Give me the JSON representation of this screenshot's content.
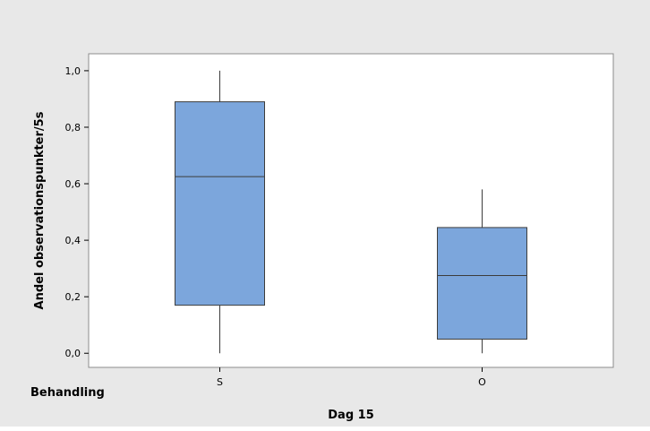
{
  "chart_data": {
    "type": "boxplot",
    "title": "",
    "xlabel": "Dag 15",
    "ylabel": "Andel observationspunkter/5s",
    "group_label": "Behandling",
    "ylim": [
      -0.05,
      1.06
    ],
    "yticks": [
      0.0,
      0.2,
      0.4,
      0.6,
      0.8,
      1.0
    ],
    "ytick_labels": [
      "0,0",
      "0,2",
      "0,4",
      "0,6",
      "0,8",
      "1,0"
    ],
    "categories": [
      "S",
      "O"
    ],
    "boxes": [
      {
        "category": "S",
        "min": 0.0,
        "q1": 0.17,
        "median": 0.625,
        "q3": 0.89,
        "max": 1.0
      },
      {
        "category": "O",
        "min": 0.0,
        "q1": 0.05,
        "median": 0.275,
        "q3": 0.445,
        "max": 0.58
      }
    ],
    "colors": {
      "outer_background": "#e8e8e8",
      "plot_background": "#ffffff",
      "box_fill": "#7ca6dc",
      "box_stroke": "#3c3c3c",
      "whisker": "#3c3c3c"
    }
  }
}
